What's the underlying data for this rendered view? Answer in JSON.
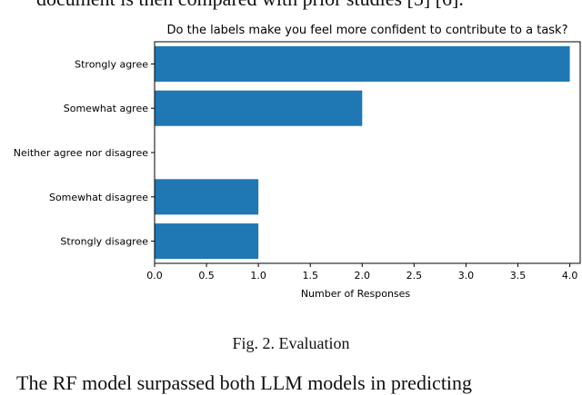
{
  "page": {
    "top_fragment": "document is then compared with prior studies [5] [6].",
    "caption": "Fig. 2.  Evaluation",
    "bottom_fragment": "The RF model surpassed both LLM models in predicting"
  },
  "chart_data": {
    "type": "bar",
    "orientation": "horizontal",
    "title": "Do the labels make you feel more confident to contribute to a task?",
    "xlabel": "Number of Responses",
    "ylabel": "",
    "categories": [
      "Strongly agree",
      "Somewhat agree",
      "Neither agree nor disagree",
      "Somewhat disagree",
      "Strongly disagree"
    ],
    "values": [
      4,
      2,
      0,
      1,
      1
    ],
    "xlim": [
      0,
      4.1
    ],
    "xticks": [
      "0.0",
      "0.5",
      "1.0",
      "1.5",
      "2.0",
      "2.5",
      "3.0",
      "3.5",
      "4.0"
    ],
    "grid": false,
    "legend": "none",
    "bar_color": "#1f77b4"
  }
}
